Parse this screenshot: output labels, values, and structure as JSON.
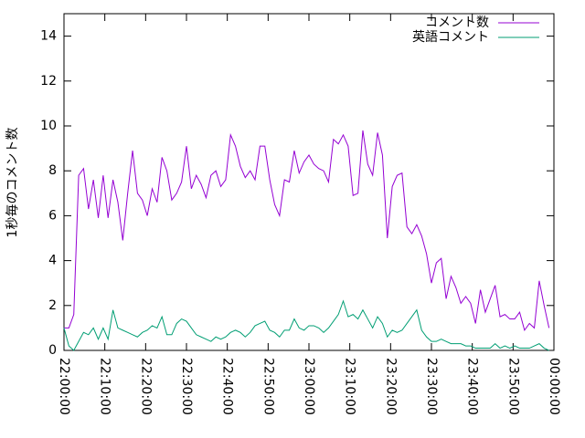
{
  "chart_data": {
    "type": "line",
    "y_label": "1秒毎のコメント数",
    "x": [
      "22:00:00",
      "22:01:12",
      "22:02:24",
      "22:03:36",
      "22:04:48",
      "22:06:00",
      "22:07:12",
      "22:08:24",
      "22:09:36",
      "22:10:48",
      "22:12:00",
      "22:13:12",
      "22:14:24",
      "22:15:36",
      "22:16:48",
      "22:18:00",
      "22:19:12",
      "22:20:24",
      "22:21:36",
      "22:22:48",
      "22:24:00",
      "22:25:12",
      "22:26:24",
      "22:27:36",
      "22:28:48",
      "22:30:00",
      "22:31:12",
      "22:32:24",
      "22:33:36",
      "22:34:48",
      "22:36:00",
      "22:37:12",
      "22:38:24",
      "22:39:36",
      "22:40:48",
      "22:42:00",
      "22:43:12",
      "22:44:24",
      "22:45:36",
      "22:46:48",
      "22:48:00",
      "22:49:12",
      "22:50:24",
      "22:51:36",
      "22:52:48",
      "22:54:00",
      "22:55:12",
      "22:56:24",
      "22:57:36",
      "22:58:48",
      "23:00:00",
      "23:01:12",
      "23:02:24",
      "23:03:36",
      "23:04:48",
      "23:06:00",
      "23:07:12",
      "23:08:24",
      "23:09:36",
      "23:10:48",
      "23:12:00",
      "23:13:12",
      "23:14:24",
      "23:15:36",
      "23:16:48",
      "23:18:00",
      "23:19:12",
      "23:20:24",
      "23:21:36",
      "23:22:48",
      "23:24:00",
      "23:25:12",
      "23:26:24",
      "23:27:36",
      "23:28:48",
      "23:30:00",
      "23:31:12",
      "23:32:24",
      "23:33:36",
      "23:34:48",
      "23:36:00",
      "23:37:12",
      "23:38:24",
      "23:39:36",
      "23:40:48",
      "23:42:00",
      "23:43:12",
      "23:44:24",
      "23:45:36",
      "23:46:48",
      "23:48:00",
      "23:49:12",
      "23:50:24",
      "23:51:36",
      "23:52:48",
      "23:54:00",
      "23:55:12",
      "23:56:24",
      "23:57:36",
      "23:58:48"
    ],
    "series": [
      {
        "name": "コメント数",
        "color": "#9400d3",
        "values": [
          1.0,
          1.0,
          1.6,
          7.8,
          8.1,
          6.3,
          7.6,
          5.9,
          7.8,
          5.9,
          7.6,
          6.6,
          4.9,
          7.0,
          8.9,
          7.0,
          6.7,
          6.0,
          7.2,
          6.6,
          8.6,
          8.0,
          6.7,
          7.0,
          7.5,
          9.1,
          7.2,
          7.8,
          7.4,
          6.8,
          7.8,
          8.0,
          7.3,
          7.6,
          9.6,
          9.1,
          8.2,
          7.7,
          8.0,
          7.6,
          9.1,
          9.1,
          7.6,
          6.5,
          6.0,
          7.6,
          7.5,
          8.9,
          7.9,
          8.4,
          8.7,
          8.3,
          8.1,
          8.0,
          7.5,
          9.4,
          9.2,
          9.6,
          9.1,
          6.9,
          7.0,
          9.8,
          8.3,
          7.8,
          9.7,
          8.7,
          5.0,
          7.3,
          7.8,
          7.9,
          5.5,
          5.2,
          5.6,
          5.1,
          4.3,
          3.0,
          3.9,
          4.1,
          2.3,
          3.3,
          2.8,
          2.1,
          2.4,
          2.1,
          1.2,
          2.7,
          1.7,
          2.3,
          2.9,
          1.5,
          1.6,
          1.4,
          1.4,
          1.7,
          0.9,
          1.2,
          1.0,
          3.1,
          2.0,
          1.0
        ]
      },
      {
        "name": "英語コメント",
        "color": "#009e73",
        "values": [
          1.0,
          0.2,
          0.0,
          0.4,
          0.8,
          0.7,
          1.0,
          0.5,
          1.0,
          0.5,
          1.8,
          1.0,
          0.9,
          0.8,
          0.7,
          0.6,
          0.8,
          0.9,
          1.1,
          1.0,
          1.5,
          0.7,
          0.7,
          1.2,
          1.4,
          1.3,
          1.0,
          0.7,
          0.6,
          0.5,
          0.4,
          0.6,
          0.5,
          0.6,
          0.8,
          0.9,
          0.8,
          0.6,
          0.8,
          1.1,
          1.2,
          1.3,
          0.9,
          0.8,
          0.6,
          0.9,
          0.9,
          1.4,
          1.0,
          0.9,
          1.1,
          1.1,
          1.0,
          0.8,
          1.0,
          1.3,
          1.6,
          2.2,
          1.5,
          1.6,
          1.4,
          1.8,
          1.4,
          1.0,
          1.5,
          1.2,
          0.6,
          0.9,
          0.8,
          0.9,
          1.2,
          1.5,
          1.8,
          0.9,
          0.6,
          0.4,
          0.4,
          0.5,
          0.4,
          0.3,
          0.3,
          0.3,
          0.2,
          0.2,
          0.1,
          0.1,
          0.1,
          0.1,
          0.3,
          0.1,
          0.2,
          0.1,
          0.2,
          0.1,
          0.1,
          0.1,
          0.2,
          0.3,
          0.1,
          0.0
        ]
      }
    ],
    "xlim": [
      "22:00:00",
      "00:00:00"
    ],
    "xticks": [
      "22:00:00",
      "22:10:00",
      "22:20:00",
      "22:30:00",
      "22:40:00",
      "22:50:00",
      "23:00:00",
      "23:10:00",
      "23:20:00",
      "23:30:00",
      "23:40:00",
      "23:50:00",
      "00:00:00"
    ],
    "ylim": [
      0,
      15
    ],
    "yticks": [
      0,
      2,
      4,
      6,
      8,
      10,
      12,
      14
    ],
    "legend": "top-right",
    "grid": false
  }
}
